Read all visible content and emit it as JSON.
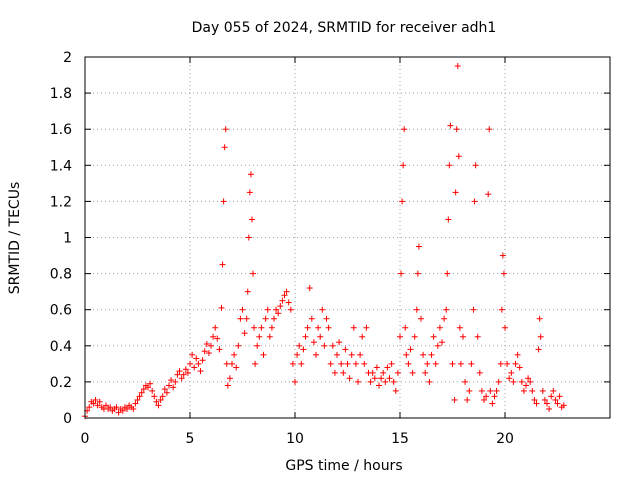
{
  "chart_data": {
    "type": "scatter",
    "title": "Day 055 of 2024, SRMTID for receiver adh1",
    "xlabel": "GPS time / hours",
    "ylabel": "SRMTID / TECUs",
    "xlim": [
      0,
      25
    ],
    "ylim": [
      0,
      2
    ],
    "xticks": [
      0,
      5,
      10,
      15,
      20
    ],
    "xtick_labels": [
      "0",
      "5",
      "10",
      "15",
      "20"
    ],
    "yticks": [
      0,
      0.2,
      0.4,
      0.6,
      0.8,
      1,
      1.2,
      1.4,
      1.6,
      1.8,
      2
    ],
    "ytick_labels": [
      "0",
      "0.2",
      "0.4",
      "0.6",
      "0.8",
      "1",
      "1.2",
      "1.4",
      "1.6",
      "1.8",
      "2"
    ],
    "grid": true,
    "marker": "+",
    "color": "#ff0000",
    "series": [
      {
        "name": "adh1",
        "points": [
          [
            0.0,
            0.01
          ],
          [
            0.1,
            0.04
          ],
          [
            0.2,
            0.06
          ],
          [
            0.3,
            0.09
          ],
          [
            0.4,
            0.08
          ],
          [
            0.5,
            0.1
          ],
          [
            0.6,
            0.07
          ],
          [
            0.7,
            0.09
          ],
          [
            0.8,
            0.06
          ],
          [
            0.9,
            0.05
          ],
          [
            1.0,
            0.07
          ],
          [
            1.1,
            0.05
          ],
          [
            1.2,
            0.06
          ],
          [
            1.3,
            0.04
          ],
          [
            1.4,
            0.05
          ],
          [
            1.5,
            0.06
          ],
          [
            1.6,
            0.03
          ],
          [
            1.7,
            0.05
          ],
          [
            1.8,
            0.04
          ],
          [
            1.9,
            0.06
          ],
          [
            2.0,
            0.05
          ],
          [
            2.1,
            0.07
          ],
          [
            2.2,
            0.06
          ],
          [
            2.3,
            0.05
          ],
          [
            2.4,
            0.08
          ],
          [
            2.5,
            0.1
          ],
          [
            2.6,
            0.12
          ],
          [
            2.7,
            0.14
          ],
          [
            2.8,
            0.16
          ],
          [
            2.9,
            0.18
          ],
          [
            3.0,
            0.17
          ],
          [
            3.1,
            0.19
          ],
          [
            3.2,
            0.15
          ],
          [
            3.3,
            0.12
          ],
          [
            3.4,
            0.09
          ],
          [
            3.5,
            0.07
          ],
          [
            3.6,
            0.1
          ],
          [
            3.7,
            0.12
          ],
          [
            3.8,
            0.16
          ],
          [
            3.9,
            0.14
          ],
          [
            4.0,
            0.18
          ],
          [
            4.1,
            0.21
          ],
          [
            4.2,
            0.17
          ],
          [
            4.3,
            0.2
          ],
          [
            4.4,
            0.24
          ],
          [
            4.5,
            0.26
          ],
          [
            4.6,
            0.22
          ],
          [
            4.7,
            0.24
          ],
          [
            4.8,
            0.27
          ],
          [
            4.9,
            0.25
          ],
          [
            5.0,
            0.3
          ],
          [
            5.1,
            0.35
          ],
          [
            5.2,
            0.28
          ],
          [
            5.3,
            0.33
          ],
          [
            5.4,
            0.3
          ],
          [
            5.5,
            0.26
          ],
          [
            5.6,
            0.32
          ],
          [
            5.7,
            0.37
          ],
          [
            5.8,
            0.41
          ],
          [
            5.9,
            0.36
          ],
          [
            6.0,
            0.4
          ],
          [
            6.1,
            0.45
          ],
          [
            6.2,
            0.5
          ],
          [
            6.3,
            0.44
          ],
          [
            6.4,
            0.38
          ],
          [
            6.5,
            0.61
          ],
          [
            6.55,
            0.85
          ],
          [
            6.6,
            1.2
          ],
          [
            6.65,
            1.5
          ],
          [
            6.7,
            1.6
          ],
          [
            6.75,
            0.3
          ],
          [
            6.8,
            0.18
          ],
          [
            6.9,
            0.22
          ],
          [
            7.0,
            0.3
          ],
          [
            7.1,
            0.35
          ],
          [
            7.2,
            0.28
          ],
          [
            7.3,
            0.4
          ],
          [
            7.4,
            0.55
          ],
          [
            7.5,
            0.6
          ],
          [
            7.6,
            0.47
          ],
          [
            7.7,
            0.55
          ],
          [
            7.75,
            0.7
          ],
          [
            7.8,
            1.0
          ],
          [
            7.85,
            1.25
          ],
          [
            7.9,
            1.35
          ],
          [
            7.95,
            1.1
          ],
          [
            8.0,
            0.8
          ],
          [
            8.05,
            0.5
          ],
          [
            8.1,
            0.3
          ],
          [
            8.2,
            0.4
          ],
          [
            8.3,
            0.45
          ],
          [
            8.4,
            0.5
          ],
          [
            8.5,
            0.35
          ],
          [
            8.6,
            0.55
          ],
          [
            8.7,
            0.6
          ],
          [
            8.8,
            0.45
          ],
          [
            8.9,
            0.5
          ],
          [
            9.0,
            0.55
          ],
          [
            9.1,
            0.6
          ],
          [
            9.2,
            0.58
          ],
          [
            9.3,
            0.62
          ],
          [
            9.4,
            0.65
          ],
          [
            9.5,
            0.68
          ],
          [
            9.6,
            0.7
          ],
          [
            9.7,
            0.64
          ],
          [
            9.8,
            0.6
          ],
          [
            9.9,
            0.3
          ],
          [
            10.0,
            0.2
          ],
          [
            10.1,
            0.35
          ],
          [
            10.2,
            0.4
          ],
          [
            10.3,
            0.3
          ],
          [
            10.4,
            0.38
          ],
          [
            10.5,
            0.45
          ],
          [
            10.6,
            0.5
          ],
          [
            10.7,
            0.72
          ],
          [
            10.8,
            0.55
          ],
          [
            10.9,
            0.42
          ],
          [
            11.0,
            0.35
          ],
          [
            11.1,
            0.5
          ],
          [
            11.2,
            0.45
          ],
          [
            11.3,
            0.6
          ],
          [
            11.4,
            0.4
          ],
          [
            11.5,
            0.55
          ],
          [
            11.6,
            0.5
          ],
          [
            11.7,
            0.3
          ],
          [
            11.8,
            0.4
          ],
          [
            11.9,
            0.25
          ],
          [
            12.0,
            0.35
          ],
          [
            12.1,
            0.42
          ],
          [
            12.2,
            0.3
          ],
          [
            12.3,
            0.25
          ],
          [
            12.4,
            0.38
          ],
          [
            12.5,
            0.3
          ],
          [
            12.6,
            0.22
          ],
          [
            12.7,
            0.35
          ],
          [
            12.8,
            0.5
          ],
          [
            12.9,
            0.3
          ],
          [
            13.0,
            0.2
          ],
          [
            13.1,
            0.35
          ],
          [
            13.2,
            0.45
          ],
          [
            13.3,
            0.3
          ],
          [
            13.4,
            0.5
          ],
          [
            13.5,
            0.25
          ],
          [
            13.6,
            0.2
          ],
          [
            13.7,
            0.25
          ],
          [
            13.8,
            0.22
          ],
          [
            13.9,
            0.28
          ],
          [
            14.0,
            0.18
          ],
          [
            14.1,
            0.22
          ],
          [
            14.2,
            0.25
          ],
          [
            14.3,
            0.2
          ],
          [
            14.4,
            0.28
          ],
          [
            14.5,
            0.22
          ],
          [
            14.6,
            0.3
          ],
          [
            14.7,
            0.2
          ],
          [
            14.8,
            0.15
          ],
          [
            14.9,
            0.25
          ],
          [
            15.0,
            0.45
          ],
          [
            15.05,
            0.8
          ],
          [
            15.1,
            1.2
          ],
          [
            15.15,
            1.4
          ],
          [
            15.2,
            1.6
          ],
          [
            15.25,
            0.5
          ],
          [
            15.3,
            0.35
          ],
          [
            15.4,
            0.3
          ],
          [
            15.5,
            0.38
          ],
          [
            15.6,
            0.25
          ],
          [
            15.7,
            0.45
          ],
          [
            15.8,
            0.6
          ],
          [
            15.85,
            0.8
          ],
          [
            15.9,
            0.95
          ],
          [
            16.0,
            0.55
          ],
          [
            16.1,
            0.35
          ],
          [
            16.2,
            0.25
          ],
          [
            16.3,
            0.3
          ],
          [
            16.4,
            0.2
          ],
          [
            16.5,
            0.35
          ],
          [
            16.6,
            0.45
          ],
          [
            16.7,
            0.3
          ],
          [
            16.8,
            0.4
          ],
          [
            16.9,
            0.5
          ],
          [
            17.0,
            0.42
          ],
          [
            17.1,
            0.55
          ],
          [
            17.2,
            0.6
          ],
          [
            17.25,
            0.8
          ],
          [
            17.3,
            1.1
          ],
          [
            17.35,
            1.4
          ],
          [
            17.4,
            1.62
          ],
          [
            17.5,
            0.3
          ],
          [
            17.6,
            0.1
          ],
          [
            17.65,
            1.25
          ],
          [
            17.7,
            1.6
          ],
          [
            17.75,
            1.95
          ],
          [
            17.8,
            1.45
          ],
          [
            17.85,
            0.5
          ],
          [
            17.9,
            0.3
          ],
          [
            18.0,
            0.45
          ],
          [
            18.1,
            0.2
          ],
          [
            18.2,
            0.1
          ],
          [
            18.3,
            0.15
          ],
          [
            18.4,
            0.3
          ],
          [
            18.5,
            0.6
          ],
          [
            18.55,
            1.2
          ],
          [
            18.6,
            1.4
          ],
          [
            18.7,
            0.45
          ],
          [
            18.8,
            0.25
          ],
          [
            18.9,
            0.15
          ],
          [
            19.0,
            0.1
          ],
          [
            19.1,
            0.12
          ],
          [
            19.2,
            1.24
          ],
          [
            19.25,
            1.6
          ],
          [
            19.3,
            0.15
          ],
          [
            19.4,
            0.08
          ],
          [
            19.5,
            0.12
          ],
          [
            19.6,
            0.15
          ],
          [
            19.7,
            0.2
          ],
          [
            19.8,
            0.3
          ],
          [
            19.85,
            0.6
          ],
          [
            19.9,
            0.9
          ],
          [
            19.95,
            0.8
          ],
          [
            20.0,
            0.5
          ],
          [
            20.1,
            0.3
          ],
          [
            20.2,
            0.22
          ],
          [
            20.3,
            0.25
          ],
          [
            20.4,
            0.2
          ],
          [
            20.5,
            0.3
          ],
          [
            20.6,
            0.35
          ],
          [
            20.7,
            0.28
          ],
          [
            20.8,
            0.2
          ],
          [
            20.9,
            0.15
          ],
          [
            21.0,
            0.18
          ],
          [
            21.1,
            0.22
          ],
          [
            21.2,
            0.2
          ],
          [
            21.3,
            0.15
          ],
          [
            21.4,
            0.1
          ],
          [
            21.5,
            0.08
          ],
          [
            21.6,
            0.38
          ],
          [
            21.65,
            0.55
          ],
          [
            21.7,
            0.45
          ],
          [
            21.8,
            0.15
          ],
          [
            21.9,
            0.1
          ],
          [
            22.0,
            0.08
          ],
          [
            22.1,
            0.05
          ],
          [
            22.2,
            0.12
          ],
          [
            22.3,
            0.15
          ],
          [
            22.4,
            0.1
          ],
          [
            22.5,
            0.08
          ],
          [
            22.6,
            0.12
          ],
          [
            22.7,
            0.06
          ],
          [
            22.8,
            0.07
          ]
        ]
      }
    ]
  }
}
